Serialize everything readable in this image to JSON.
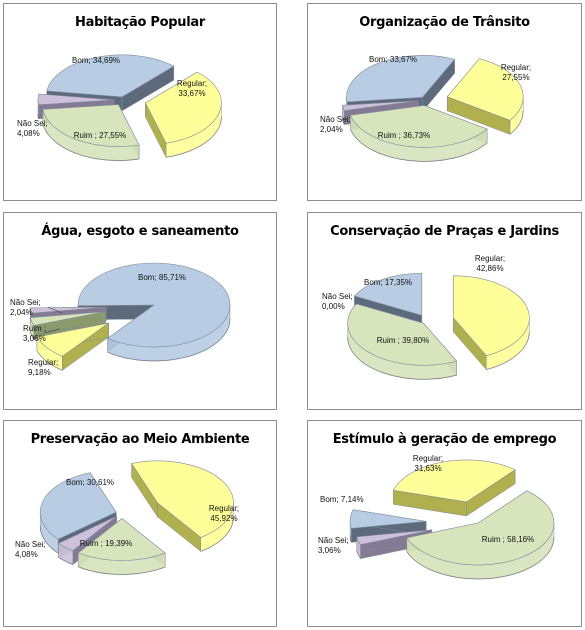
{
  "colors": {
    "bom": "#b8cce4",
    "regular": "#ffff99",
    "ruim": "#d7e4bc",
    "nao_sei": "#ccc0da"
  },
  "chart_data": [
    {
      "type": "pie",
      "title": "Habitação Popular",
      "slices": [
        {
          "key": "regular",
          "label": "Regular;",
          "value_text": "33,67%",
          "value": 33.67
        },
        {
          "key": "ruim",
          "label": "Ruim ;",
          "value_text": "27,55%",
          "value": 27.55
        },
        {
          "key": "nao_sei",
          "label": "Não Sei;",
          "value_text": "4,08%",
          "value": 4.08
        },
        {
          "key": "bom",
          "label": "Bom;",
          "value_text": "34,69%",
          "value": 34.69
        }
      ]
    },
    {
      "type": "pie",
      "title": "Organização de Trânsito",
      "slices": [
        {
          "key": "regular",
          "label": "Regular;",
          "value_text": "27,55%",
          "value": 27.55
        },
        {
          "key": "ruim",
          "label": "Ruim ;",
          "value_text": "36,73%",
          "value": 36.73
        },
        {
          "key": "nao_sei",
          "label": "Não Sei;",
          "value_text": "2,04%",
          "value": 2.04
        },
        {
          "key": "bom",
          "label": "Bom;",
          "value_text": "33,67%",
          "value": 33.67
        }
      ]
    },
    {
      "type": "pie",
      "title": "Água, esgoto e saneamento",
      "slices": [
        {
          "key": "bom",
          "label": "Bom;",
          "value_text": "85,71%",
          "value": 85.71
        },
        {
          "key": "regular",
          "label": "Regular;",
          "value_text": "9,18%",
          "value": 9.18
        },
        {
          "key": "ruim",
          "label": "Ruim ;",
          "value_text": "3,06%",
          "value": 3.06
        },
        {
          "key": "nao_sei",
          "label": "Não Sei;",
          "value_text": "2,04%",
          "value": 2.04
        }
      ]
    },
    {
      "type": "pie",
      "title": "Conservação de Praças e Jardins",
      "slices": [
        {
          "key": "regular",
          "label": "Regular;",
          "value_text": "42,86%",
          "value": 42.86
        },
        {
          "key": "ruim",
          "label": "Ruim ;",
          "value_text": "39,80%",
          "value": 39.8
        },
        {
          "key": "nao_sei",
          "label": "Não Sei;",
          "value_text": "0,00%",
          "value": 0.0
        },
        {
          "key": "bom",
          "label": "Bom;",
          "value_text": "17,35%",
          "value": 17.35
        }
      ]
    },
    {
      "type": "pie",
      "title": "Preservação ao Meio Ambiente",
      "slices": [
        {
          "key": "regular",
          "label": "Regular;",
          "value_text": "45,92%",
          "value": 45.92
        },
        {
          "key": "ruim",
          "label": "Ruim ;",
          "value_text": "19,39%",
          "value": 19.39
        },
        {
          "key": "nao_sei",
          "label": "Não Sei;",
          "value_text": "4,08%",
          "value": 4.08
        },
        {
          "key": "bom",
          "label": "Bom;",
          "value_text": "30,61%",
          "value": 30.61
        }
      ]
    },
    {
      "type": "pie",
      "title": "Estímulo à geração de emprego",
      "slices": [
        {
          "key": "ruim",
          "label": "Ruim ;",
          "value_text": "58,16%",
          "value": 58.16
        },
        {
          "key": "nao_sei",
          "label": "Não Sei;",
          "value_text": "3,06%",
          "value": 3.06
        },
        {
          "key": "bom",
          "label": "Bom;",
          "value_text": "7,14%",
          "value": 7.14
        },
        {
          "key": "regular",
          "label": "Regular;",
          "value_text": "31,63%",
          "value": 31.63
        }
      ]
    }
  ]
}
